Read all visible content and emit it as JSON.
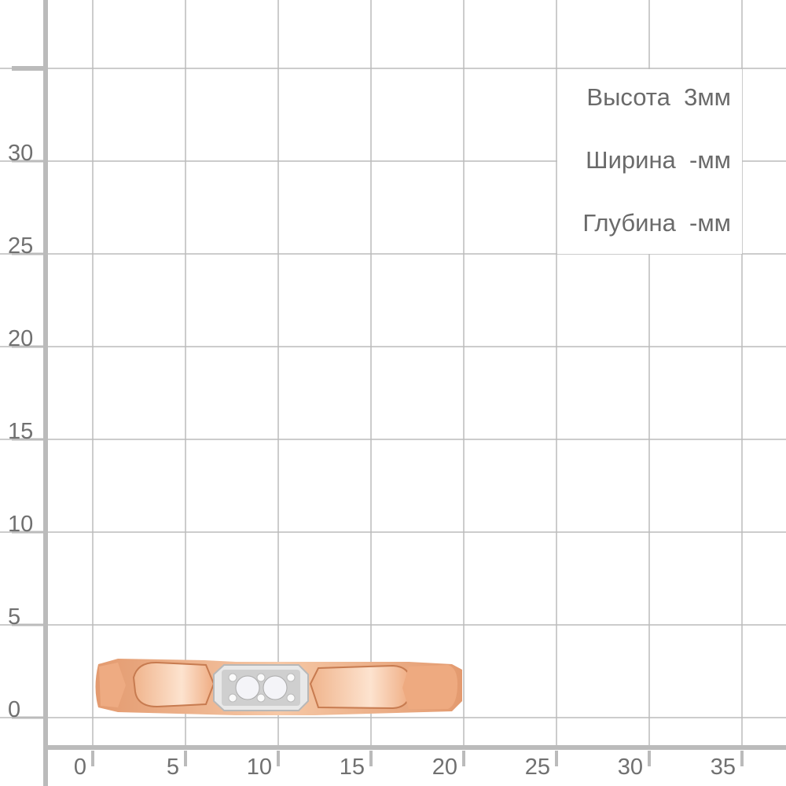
{
  "y_axis_labels": [
    "30",
    "25",
    "20",
    "15",
    "10",
    "5",
    "0"
  ],
  "x_axis_labels": [
    "0",
    "5",
    "10",
    "15",
    "20",
    "25",
    "30",
    "35"
  ],
  "specs": [
    {
      "label": "Высота",
      "value": "3мм"
    },
    {
      "label": "Ширина",
      "value": "-мм"
    },
    {
      "label": "Глубина",
      "value": "-мм"
    }
  ],
  "colors": {
    "grid": "#bbbbbb",
    "text": "#6a6a6a",
    "gold": "#e9a57c",
    "white_gold": "#e2e2e2"
  }
}
